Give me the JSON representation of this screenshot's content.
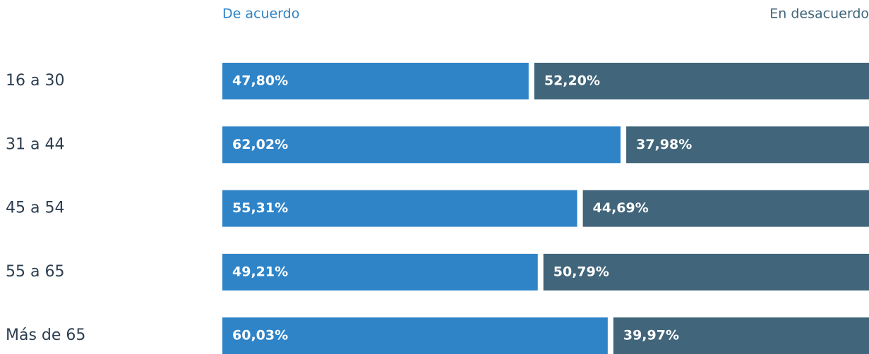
{
  "chart_data": {
    "type": "stacked-bar-horizontal",
    "categories": [
      "16 a 30",
      "31 a 44",
      "45 a 54",
      "55 a 65",
      "Más de 65"
    ],
    "series": [
      {
        "name": "De acuerdo",
        "color": "#2f84c8",
        "values": [
          47.8,
          62.02,
          55.31,
          49.21,
          60.03
        ],
        "value_labels": [
          "47,80%",
          "62,02%",
          "55,31%",
          "49,21%",
          "60,03%"
        ]
      },
      {
        "name": "En desacuerdo",
        "color": "#41657a",
        "values": [
          52.2,
          37.98,
          44.69,
          50.79,
          39.97
        ],
        "value_labels": [
          "52,20%",
          "37,98%",
          "44,69%",
          "50,79%",
          "39,97%"
        ]
      }
    ]
  }
}
